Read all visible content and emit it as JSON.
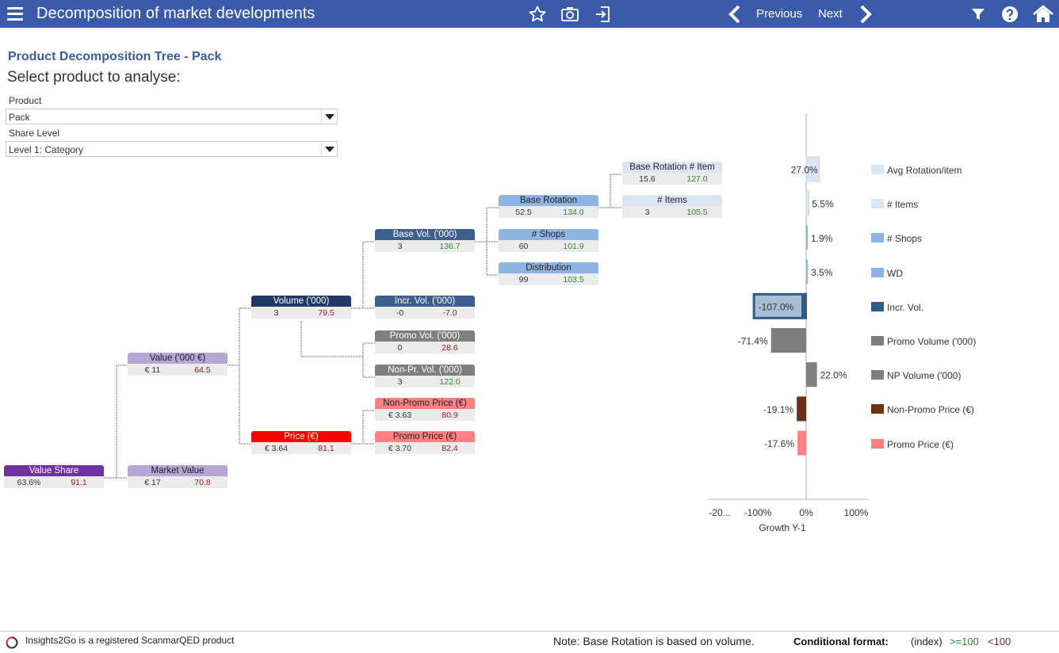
{
  "app": {
    "title": "Decomposition of market developments",
    "nav": {
      "previous": "Previous",
      "next": "Next"
    },
    "icons": [
      "menu-icon",
      "star-icon",
      "camera-icon",
      "export-icon",
      "chevron-left-icon",
      "chevron-right-icon",
      "filter-icon",
      "help-icon",
      "home-icon"
    ]
  },
  "header": {
    "subtitle": "Product Decomposition Tree - Pack",
    "prompt": "Select product to analyse:"
  },
  "filters": {
    "product_label": "Product",
    "product_value": "Pack",
    "share_label": "Share Level",
    "share_value": "Level 1: Category"
  },
  "colors": {
    "topbar": "#3a5ba9",
    "good": "#2c8c2c",
    "bad": "#8a1d1d"
  },
  "tree": {
    "value_share": {
      "label": "Value Share",
      "v1": "63.6%",
      "v2": "91.1",
      "status": "bad",
      "bg": "#7030a0",
      "fg": "#ffffff"
    },
    "market_value": {
      "label": "Market Value",
      "v1": "€ 17",
      "v2": "70.8",
      "status": "bad",
      "bg": "#b4a7d6",
      "fg": "#222222"
    },
    "value": {
      "label": "Value ('000 €)",
      "v1": "€ 11",
      "v2": "64.5",
      "status": "bad",
      "bg": "#b4a7d6",
      "fg": "#222222"
    },
    "volume": {
      "label": "Volume ('000)",
      "v1": "3",
      "v2": "79.5",
      "status": "bad",
      "bg": "#1f3864",
      "fg": "#ffffff"
    },
    "price": {
      "label": "Price (€)",
      "v1": "€ 3.64",
      "v2": "81.1",
      "status": "bad",
      "bg": "#ff0000",
      "fg": "#ffffff"
    },
    "base_vol": {
      "label": "Base Vol. ('000)",
      "v1": "3",
      "v2": "136.7",
      "status": "good",
      "bg": "#3d5f8f",
      "fg": "#ffffff"
    },
    "incr_vol": {
      "label": "Incr. Vol. ('000)",
      "v1": "-0",
      "v2": "-7.0",
      "status": "bad",
      "bg": "#3d5f8f",
      "fg": "#ffffff"
    },
    "promo_vol": {
      "label": "Promo Vol. ('000)",
      "v1": "0",
      "v2": "28.6",
      "status": "bad",
      "bg": "#7f7f7f",
      "fg": "#ffffff"
    },
    "non_pr_vol": {
      "label": "Non-Pr. Vol. ('000)",
      "v1": "3",
      "v2": "122.0",
      "status": "good",
      "bg": "#7f7f7f",
      "fg": "#ffffff"
    },
    "non_promo_price": {
      "label": "Non-Promo Price (€)",
      "v1": "€ 3.63",
      "v2": "80.9",
      "status": "bad",
      "bg": "#ff8080",
      "fg": "#222222"
    },
    "promo_price": {
      "label": "Promo Price (€)",
      "v1": "€ 3.70",
      "v2": "82.4",
      "status": "bad",
      "bg": "#ff8080",
      "fg": "#222222"
    },
    "base_rotation": {
      "label": "Base Rotation",
      "v1": "52.5",
      "v2": "134.0",
      "status": "good",
      "bg": "#8eb4e3",
      "fg": "#222222"
    },
    "shops": {
      "label": "# Shops",
      "v1": "60",
      "v2": "101.9",
      "status": "good",
      "bg": "#8eb4e3",
      "fg": "#222222"
    },
    "distribution": {
      "label": "Distribution",
      "v1": "99",
      "v2": "103.5",
      "status": "good",
      "bg": "#8eb4e3",
      "fg": "#222222"
    },
    "base_rotation_item": {
      "label": "Base Rotation # Item",
      "v1": "15.6",
      "v2": "127.0",
      "status": "good",
      "bg": "#dce6f2",
      "fg": "#222222"
    },
    "items": {
      "label": "# Items",
      "v1": "3",
      "v2": "105.5",
      "status": "good",
      "bg": "#dce6f2",
      "fg": "#222222"
    }
  },
  "chart_data": {
    "type": "bar",
    "orientation": "horizontal",
    "categories": [
      "Avg Rotation/item",
      "# Items",
      "# Shops",
      "WD",
      "Incr. Vol.",
      "Promo Volume ('000)",
      "NP Volume ('000)",
      "Non-Promo Price (€)",
      "Promo Price (€)"
    ],
    "values": [
      27.0,
      5.5,
      1.9,
      3.5,
      -107.0,
      -71.4,
      22.0,
      -19.1,
      -17.6
    ],
    "value_labels": [
      "27.0%",
      "5.5%",
      "1.9%",
      "3.5%",
      "-107.0%",
      "-71.4%",
      "22.0%",
      "-19.1%",
      "-17.6%"
    ],
    "colors": [
      "#dce6f2",
      "#dce6f2",
      "#8eb4e3",
      "#8eb4e3",
      "#2e5c8a",
      "#7f7f7f",
      "#7f7f7f",
      "#6b3316",
      "#ff8080"
    ],
    "xlabel": "Growth Y-1",
    "xlim": [
      -200,
      100
    ],
    "xticks": [
      "-20...",
      "-100%",
      "0%",
      "100%"
    ],
    "xtick_values": [
      -200,
      -100,
      0,
      100
    ],
    "legend": [
      "Avg Rotation/item",
      "# Items",
      "# Shops",
      "WD",
      "Incr. Vol.",
      "Promo Volume ('000)",
      "NP Volume ('000)",
      "Non-Promo Price (€)",
      "Promo Price (€)"
    ],
    "legend_placement": "right",
    "grid": false
  },
  "footer": {
    "brand": "Insights2Go is  a registered ScanmarQED product",
    "note": "Note: Base Rotation is based on volume.",
    "cf_label": "Conditional format:",
    "cf_index": "(index)",
    "cf_good": ">=100",
    "cf_bad": "<100"
  }
}
